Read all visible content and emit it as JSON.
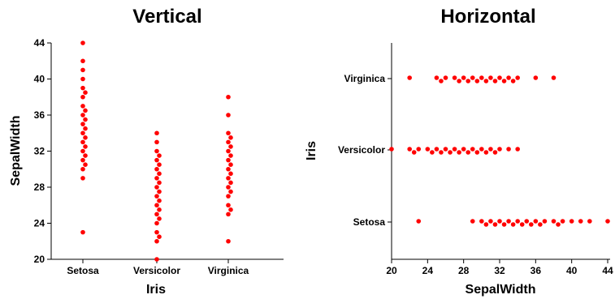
{
  "chart_data": [
    {
      "type": "scatter",
      "orientation": "vertical",
      "title": "Vertical",
      "xlabel": "Iris",
      "ylabel": "SepalWidth",
      "categories": [
        "Setosa",
        "Versicolor",
        "Virginica"
      ],
      "ylim": [
        20,
        44
      ],
      "yticks": [
        20,
        24,
        28,
        32,
        36,
        40,
        44
      ],
      "point_color": "#ff0000",
      "grid": false,
      "series": [
        {
          "category": "Setosa",
          "values": [
            23,
            29,
            30,
            30.5,
            31,
            31.5,
            32,
            32.5,
            33,
            33.5,
            34,
            34.5,
            35,
            35.5,
            36,
            36.5,
            37,
            38,
            38.5,
            39,
            40,
            41,
            42,
            44
          ]
        },
        {
          "category": "Versicolor",
          "values": [
            20,
            22,
            22.5,
            23,
            24,
            24.5,
            25,
            25.5,
            26,
            26.5,
            27,
            27.5,
            28,
            28.5,
            29,
            29.5,
            30,
            30.5,
            31,
            31.5,
            32,
            33,
            34
          ]
        },
        {
          "category": "Virginica",
          "values": [
            22,
            25,
            25.5,
            26,
            27,
            27.5,
            28,
            28.5,
            29,
            29.5,
            30,
            30.5,
            31,
            31.5,
            32,
            32.5,
            33,
            33.5,
            34,
            36,
            38
          ]
        }
      ]
    },
    {
      "type": "scatter",
      "orientation": "horizontal",
      "title": "Horizontal",
      "xlabel": "SepalWidth",
      "ylabel": "Iris",
      "categories": [
        "Setosa",
        "Versicolor",
        "Virginica"
      ],
      "xlim": [
        20,
        44
      ],
      "xticks": [
        20,
        24,
        28,
        32,
        36,
        40,
        44
      ],
      "point_color": "#ff0000",
      "grid": false,
      "series": [
        {
          "category": "Setosa",
          "values": [
            23,
            29,
            30,
            30.5,
            31,
            31.5,
            32,
            32.5,
            33,
            33.5,
            34,
            34.5,
            35,
            35.5,
            36,
            36.5,
            37,
            38,
            38.5,
            39,
            40,
            41,
            42,
            44
          ]
        },
        {
          "category": "Versicolor",
          "values": [
            20,
            22,
            22.5,
            23,
            24,
            24.5,
            25,
            25.5,
            26,
            26.5,
            27,
            27.5,
            28,
            28.5,
            29,
            29.5,
            30,
            30.5,
            31,
            31.5,
            32,
            33,
            34
          ]
        },
        {
          "category": "Virginica",
          "values": [
            22,
            25,
            25.5,
            26,
            27,
            27.5,
            28,
            28.5,
            29,
            29.5,
            30,
            30.5,
            31,
            31.5,
            32,
            32.5,
            33,
            33.5,
            34,
            36,
            38
          ]
        }
      ]
    }
  ]
}
